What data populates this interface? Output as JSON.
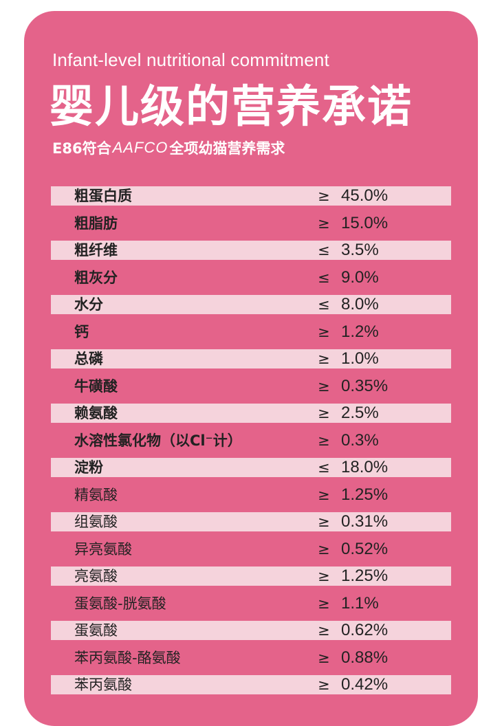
{
  "header": {
    "subtitle_en": "Infant-level nutritional commitment",
    "title_cn": "婴儿级的营养承诺",
    "claim_prefix": "E86符合",
    "claim_brand": "AAFCO",
    "claim_suffix": "全项幼猫营养需求"
  },
  "colors": {
    "card": "#e4638a",
    "row_light": "#f5d3dc",
    "text_dark": "#222222",
    "text_light": "#ffffff"
  },
  "nutrients": [
    {
      "name": "粗蛋白质",
      "op": "≥",
      "value": "45.0%",
      "bold": true
    },
    {
      "name": "粗脂肪",
      "op": "≥",
      "value": "15.0%",
      "bold": true
    },
    {
      "name": "粗纤维",
      "op": "≤",
      "value": "3.5%",
      "bold": true
    },
    {
      "name": "粗灰分",
      "op": "≤",
      "value": "9.0%",
      "bold": true
    },
    {
      "name": "水分",
      "op": "≤",
      "value": "8.0%",
      "bold": true
    },
    {
      "name": "钙",
      "op": "≥",
      "value": "1.2%",
      "bold": true
    },
    {
      "name": "总磷",
      "op": "≥",
      "value": "1.0%",
      "bold": true
    },
    {
      "name": "牛磺酸",
      "op": "≥",
      "value": "0.35%",
      "bold": true
    },
    {
      "name": "赖氨酸",
      "op": "≥",
      "value": "2.5%",
      "bold": true
    },
    {
      "name": "水溶性氯化物（以Cl⁻计）",
      "op": "≥",
      "value": "0.3%",
      "bold": true
    },
    {
      "name": "淀粉",
      "op": "≤",
      "value": "18.0%",
      "bold": true
    },
    {
      "name": "精氨酸",
      "op": "≥",
      "value": "1.25%",
      "bold": false
    },
    {
      "name": "组氨酸",
      "op": "≥",
      "value": "0.31%",
      "bold": false
    },
    {
      "name": "异亮氨酸",
      "op": "≥",
      "value": "0.52%",
      "bold": false
    },
    {
      "name": "亮氨酸",
      "op": "≥",
      "value": "1.25%",
      "bold": false
    },
    {
      "name": "蛋氨酸-胱氨酸",
      "op": "≥",
      "value": "1.1%",
      "bold": false
    },
    {
      "name": "蛋氨酸",
      "op": "≥",
      "value": "0.62%",
      "bold": false
    },
    {
      "name": "苯丙氨酸-酪氨酸",
      "op": "≥",
      "value": "0.88%",
      "bold": false
    },
    {
      "name": "苯丙氨酸",
      "op": "≥",
      "value": "0.42%",
      "bold": false
    }
  ]
}
